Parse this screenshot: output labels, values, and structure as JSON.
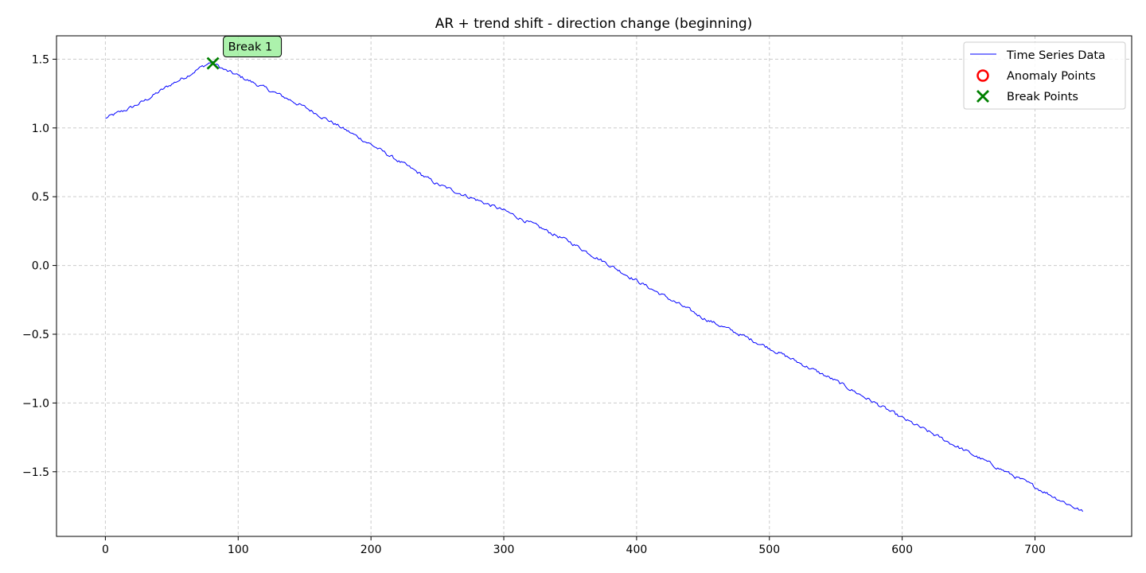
{
  "chart_data": {
    "type": "line",
    "title": "AR + trend shift - direction change (beginning)",
    "xlabel": "",
    "ylabel": "",
    "xlim": [
      -36.8,
      772.8
    ],
    "ylim": [
      -1.97,
      1.67
    ],
    "xticks": [
      0,
      100,
      200,
      300,
      400,
      500,
      600,
      700
    ],
    "yticks": [
      -1.5,
      -1.0,
      -0.5,
      0.0,
      0.5,
      1.0,
      1.5
    ],
    "xtick_labels": [
      "0",
      "100",
      "200",
      "300",
      "400",
      "500",
      "600",
      "700"
    ],
    "ytick_labels": [
      "−1.5",
      "−1.0",
      "−0.5",
      "0.0",
      "0.5",
      "1.0",
      "1.5"
    ],
    "grid": true,
    "legend_position": "upper-right",
    "series": [
      {
        "name": "Time Series Data",
        "color": "#0000ff",
        "x": [
          0,
          10,
          20,
          30,
          40,
          50,
          60,
          70,
          80,
          90,
          100,
          120,
          140,
          160,
          180,
          200,
          250,
          300,
          350,
          400,
          450,
          500,
          550,
          600,
          650,
          700,
          736
        ],
        "y": [
          1.07,
          1.11,
          1.15,
          1.2,
          1.26,
          1.32,
          1.37,
          1.43,
          1.48,
          1.42,
          1.38,
          1.29,
          1.2,
          1.1,
          0.99,
          0.88,
          0.59,
          0.4,
          0.17,
          -0.11,
          -0.38,
          -0.6,
          -0.84,
          -1.11,
          -1.36,
          -1.61,
          -1.79
        ]
      }
    ],
    "anomaly_points": {
      "name": "Anomaly Points",
      "color": "#ff0000",
      "x": [],
      "y": []
    },
    "break_points": {
      "name": "Break Points",
      "color": "#008000",
      "x": [
        81
      ],
      "y": [
        1.47
      ]
    },
    "annotations": [
      {
        "text": "Break 1",
        "x": 81,
        "y": 1.47
      }
    ]
  }
}
